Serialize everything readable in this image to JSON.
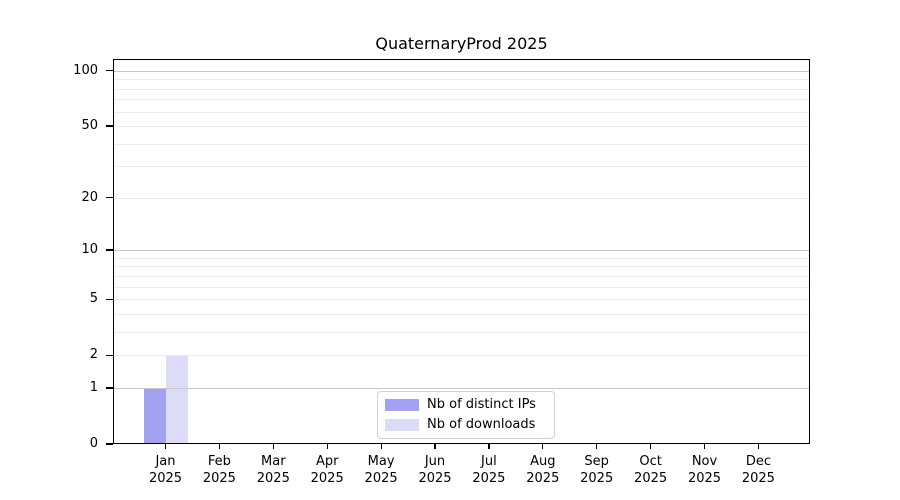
{
  "title": "QuaternaryProd 2025",
  "chart_data": {
    "type": "bar",
    "title": "QuaternaryProd 2025",
    "categories": [
      "Jan 2025",
      "Feb 2025",
      "Mar 2025",
      "Apr 2025",
      "May 2025",
      "Jun 2025",
      "Jul 2025",
      "Aug 2025",
      "Sep 2025",
      "Oct 2025",
      "Nov 2025",
      "Dec 2025"
    ],
    "x_tick_month_labels": [
      "Jan",
      "Feb",
      "Mar",
      "Apr",
      "May",
      "Jun",
      "Jul",
      "Aug",
      "Sep",
      "Oct",
      "Nov",
      "Dec"
    ],
    "x_tick_year_label": "2025",
    "series": [
      {
        "name": "Nb of distinct IPs",
        "color": "#a2a2f0",
        "values": [
          1,
          0,
          0,
          0,
          0,
          0,
          0,
          0,
          0,
          0,
          0,
          0
        ]
      },
      {
        "name": "Nb of downloads",
        "color": "#dcdcf7",
        "values": [
          2,
          0,
          0,
          0,
          0,
          0,
          0,
          0,
          0,
          0,
          0,
          0
        ]
      }
    ],
    "y_axis": {
      "scale": "log1p",
      "ylim": [
        0,
        115
      ],
      "tick_values": [
        100,
        50,
        20,
        10,
        5,
        2,
        1,
        0
      ],
      "major_gridline_values": [
        1,
        10,
        100
      ],
      "minor_gridline_values": [
        2,
        3,
        4,
        5,
        6,
        7,
        8,
        9,
        20,
        30,
        40,
        50,
        60,
        70,
        80,
        90
      ]
    },
    "grid": "horizontal-only",
    "legend": {
      "position": "lower-center-inside",
      "entries": [
        "Nb of distinct IPs",
        "Nb of downloads"
      ]
    }
  },
  "colors": {
    "background": "#ffffff",
    "bar_distinct_ips": "#a2a2f0",
    "bar_downloads": "#dcdcf7",
    "gridline_major": "#c6c6c6",
    "gridline_minor": "#ececec",
    "axis_spine": "#000000",
    "text": "#000000",
    "legend_border": "#d2d2d2"
  }
}
